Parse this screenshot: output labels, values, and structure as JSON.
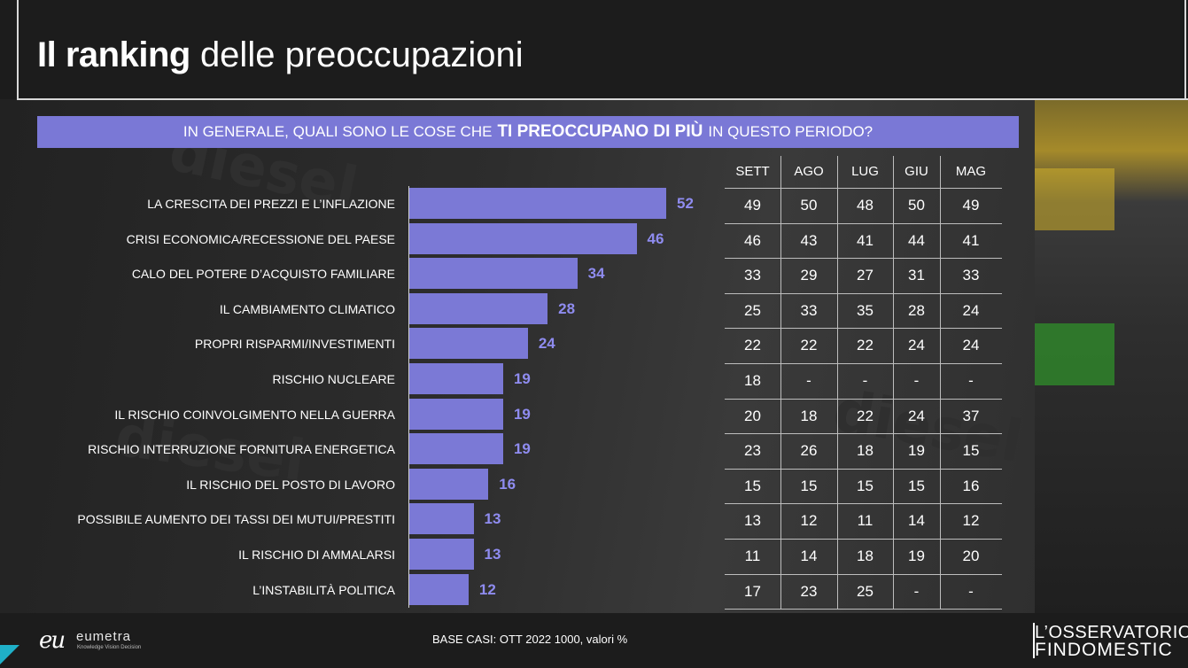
{
  "header": {
    "title_bold": "Il ranking",
    "title_rest": "delle preoccupazioni"
  },
  "question": {
    "prefix": "IN GENERALE, QUALI SONO LE COSE CHE",
    "emphasis": "TI PREOCCUPANO DI PIÙ",
    "suffix": "IN QUESTO PERIODO?"
  },
  "chart_data": {
    "type": "bar",
    "orientation": "horizontal",
    "categories": [
      "LA CRESCITA DEI PREZZI E L’INFLAZIONE",
      "CRISI ECONOMICA/RECESSIONE DEL PAESE",
      "CALO DEL POTERE D’ACQUISTO FAMILIARE",
      "IL CAMBIAMENTO CLIMATICO",
      "PROPRI RISPARMI/INVESTIMENTI",
      "RISCHIO NUCLEARE",
      "IL RISCHIO COINVOLGIMENTO NELLA GUERRA",
      "RISCHIO INTERRUZIONE FORNITURA ENERGETICA",
      "IL RISCHIO DEL POSTO DI LAVORO",
      "POSSIBILE AUMENTO DEI TASSI DEI MUTUI/PRESTITI",
      "IL RISCHIO DI AMMALARSI",
      "L’INSTABILITÀ POLITICA"
    ],
    "values": [
      52,
      46,
      34,
      28,
      24,
      19,
      19,
      19,
      16,
      13,
      13,
      12
    ],
    "xlim": [
      0,
      52
    ],
    "bar_color": "#7b79d6",
    "label_color": "#8f8cf0"
  },
  "table": {
    "columns": [
      "SETT",
      "AGO",
      "LUG",
      "GIU",
      "MAG"
    ],
    "rows": [
      [
        "49",
        "50",
        "48",
        "50",
        "49"
      ],
      [
        "46",
        "43",
        "41",
        "44",
        "41"
      ],
      [
        "33",
        "29",
        "27",
        "31",
        "33"
      ],
      [
        "25",
        "33",
        "35",
        "28",
        "24"
      ],
      [
        "22",
        "22",
        "22",
        "24",
        "24"
      ],
      [
        "18",
        "-",
        "-",
        "-",
        "-"
      ],
      [
        "20",
        "18",
        "22",
        "24",
        "37"
      ],
      [
        "23",
        "26",
        "18",
        "19",
        "15"
      ],
      [
        "15",
        "15",
        "15",
        "15",
        "16"
      ],
      [
        "13",
        "12",
        "11",
        "14",
        "12"
      ],
      [
        "11",
        "14",
        "18",
        "19",
        "20"
      ],
      [
        "17",
        "23",
        "25",
        "-",
        "-"
      ]
    ]
  },
  "background": {
    "words": [
      "diesel",
      "diesel",
      "diesel"
    ]
  },
  "footer": {
    "logo_mark": "eu",
    "logo_name": "eumetra",
    "logo_tagline": "Knowledge Vision Decision",
    "base": "BASE CASI: OTT 2022 1000, valori %",
    "brand_line1": "L’OSSERVATORIO",
    "brand_line2": "FINDOMESTIC"
  },
  "colors": {
    "accent": "#7a78d6",
    "corner": "#1fb0c8"
  }
}
